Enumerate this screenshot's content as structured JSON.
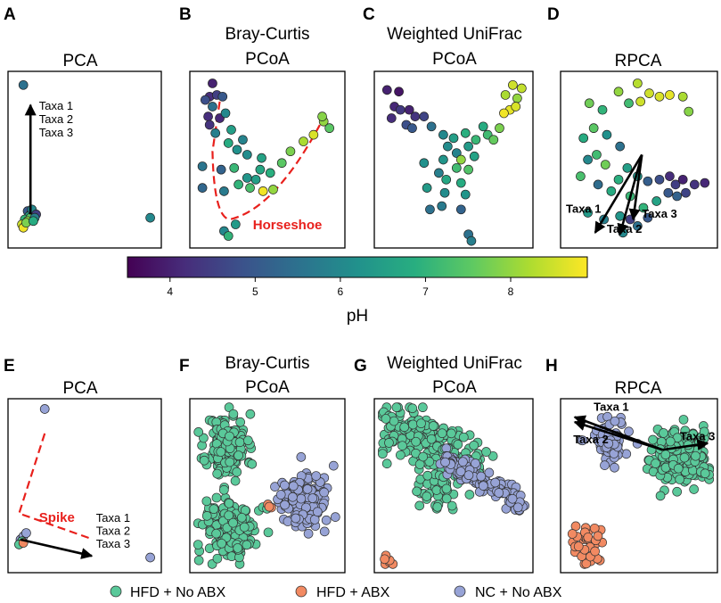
{
  "chart_data": [
    {
      "panel": "A",
      "type": "scatter",
      "title": "PCA",
      "color_by": "pH",
      "points": [
        [
          0.07,
          0.95,
          5.5
        ],
        [
          0.1,
          0.19,
          5.0
        ],
        [
          0.12,
          0.17,
          4.8
        ],
        [
          0.14,
          0.18,
          5.2
        ],
        [
          0.11,
          0.16,
          6.5
        ],
        [
          0.08,
          0.14,
          7.0
        ],
        [
          0.06,
          0.11,
          8.5
        ],
        [
          0.07,
          0.09,
          8.8
        ],
        [
          0.12,
          0.15,
          7.5
        ],
        [
          0.13,
          0.2,
          6.0
        ],
        [
          0.16,
          0.17,
          4.5
        ],
        [
          0.15,
          0.15,
          5.8
        ],
        [
          0.1,
          0.13,
          8.0
        ],
        [
          0.09,
          0.12,
          7.8
        ],
        [
          0.14,
          0.13,
          6.8
        ],
        [
          0.96,
          0.15,
          6.0
        ]
      ],
      "arrows": [
        {
          "from": [
            0.12,
            0.17
          ],
          "to": [
            0.12,
            0.83
          ]
        }
      ],
      "labels": [
        "Taxa 1",
        "Taxa 2",
        "Taxa 3"
      ]
    },
    {
      "panel": "B",
      "type": "scatter",
      "title_line1": "Bray-Curtis",
      "title_line2": "PCoA",
      "color_by": "pH",
      "points": [
        [
          0.12,
          0.96,
          4.0
        ],
        [
          0.1,
          0.88,
          4.2
        ],
        [
          0.15,
          0.89,
          4.5
        ],
        [
          0.19,
          0.88,
          5.0
        ],
        [
          0.07,
          0.86,
          4.8
        ],
        [
          0.12,
          0.82,
          5.5
        ],
        [
          0.09,
          0.76,
          4.2
        ],
        [
          0.1,
          0.71,
          4.3
        ],
        [
          0.17,
          0.75,
          4.1
        ],
        [
          0.21,
          0.78,
          6.0
        ],
        [
          0.25,
          0.68,
          6.5
        ],
        [
          0.14,
          0.66,
          5.8
        ],
        [
          0.23,
          0.6,
          6.8
        ],
        [
          0.29,
          0.56,
          6.2
        ],
        [
          0.33,
          0.62,
          5.9
        ],
        [
          0.36,
          0.53,
          6.1
        ],
        [
          0.46,
          0.51,
          6.6
        ],
        [
          0.05,
          0.46,
          5.6
        ],
        [
          0.18,
          0.44,
          5.2
        ],
        [
          0.27,
          0.45,
          7.1
        ],
        [
          0.36,
          0.39,
          6.3
        ],
        [
          0.45,
          0.44,
          6.7
        ],
        [
          0.52,
          0.42,
          6.9
        ],
        [
          0.6,
          0.48,
          7.5
        ],
        [
          0.66,
          0.55,
          7.8
        ],
        [
          0.75,
          0.61,
          8.2
        ],
        [
          0.82,
          0.65,
          8.6
        ],
        [
          0.89,
          0.73,
          8.0
        ],
        [
          0.93,
          0.69,
          7.5
        ],
        [
          0.88,
          0.76,
          7.9
        ],
        [
          0.05,
          0.33,
          5.3
        ],
        [
          0.2,
          0.31,
          5.7
        ],
        [
          0.3,
          0.35,
          7.0
        ],
        [
          0.38,
          0.33,
          7.3
        ],
        [
          0.2,
          0.07,
          6.0
        ],
        [
          0.23,
          0.04,
          7.0
        ],
        [
          0.28,
          0.11,
          6.4
        ],
        [
          0.54,
          0.32,
          8.0
        ],
        [
          0.42,
          0.38,
          6.5
        ],
        [
          0.47,
          0.31,
          8.8
        ]
      ],
      "annotation": "Horseshoe"
    },
    {
      "panel": "C",
      "type": "scatter",
      "title_line1": "Weighted UniFrac",
      "title_line2": "PCoA",
      "color_by": "pH",
      "points": [
        [
          0.05,
          0.92,
          4.0
        ],
        [
          0.13,
          0.91,
          3.8
        ],
        [
          0.1,
          0.82,
          4.1
        ],
        [
          0.14,
          0.8,
          4.4
        ],
        [
          0.2,
          0.8,
          4.0
        ],
        [
          0.24,
          0.76,
          4.3
        ],
        [
          0.3,
          0.76,
          4.6
        ],
        [
          0.08,
          0.75,
          4.2
        ],
        [
          0.18,
          0.71,
          4.8
        ],
        [
          0.22,
          0.69,
          5.0
        ],
        [
          0.35,
          0.7,
          5.5
        ],
        [
          0.43,
          0.65,
          6.0
        ],
        [
          0.5,
          0.63,
          6.5
        ],
        [
          0.58,
          0.66,
          6.9
        ],
        [
          0.65,
          0.62,
          7.1
        ],
        [
          0.7,
          0.7,
          6.8
        ],
        [
          0.73,
          0.65,
          7.2
        ],
        [
          0.77,
          0.62,
          7.6
        ],
        [
          0.81,
          0.69,
          7.8
        ],
        [
          0.85,
          0.89,
          8.2
        ],
        [
          0.9,
          0.95,
          8.5
        ],
        [
          0.93,
          0.87,
          8.0
        ],
        [
          0.96,
          0.93,
          8.4
        ],
        [
          0.88,
          0.8,
          8.7
        ],
        [
          0.84,
          0.78,
          8.8
        ],
        [
          0.92,
          0.82,
          8.6
        ],
        [
          0.6,
          0.58,
          6.4
        ],
        [
          0.52,
          0.54,
          5.9
        ],
        [
          0.46,
          0.58,
          6.1
        ],
        [
          0.43,
          0.5,
          6.3
        ],
        [
          0.55,
          0.5,
          8.0
        ],
        [
          0.6,
          0.44,
          7.4
        ],
        [
          0.64,
          0.52,
          6.6
        ],
        [
          0.52,
          0.45,
          7.2
        ],
        [
          0.3,
          0.48,
          6.2
        ],
        [
          0.4,
          0.42,
          5.8
        ],
        [
          0.45,
          0.38,
          6.7
        ],
        [
          0.55,
          0.36,
          6.8
        ],
        [
          0.32,
          0.33,
          6.4
        ],
        [
          0.44,
          0.3,
          6.1
        ],
        [
          0.58,
          0.29,
          6.3
        ],
        [
          0.42,
          0.22,
          5.7
        ],
        [
          0.55,
          0.2,
          5.2
        ],
        [
          0.34,
          0.2,
          5.5
        ],
        [
          0.6,
          0.05,
          5.5
        ],
        [
          0.62,
          0.01,
          5.8
        ]
      ]
    },
    {
      "panel": "D",
      "type": "scatter",
      "title": "RPCA",
      "color_by": "pH",
      "points": [
        [
          0.49,
          0.96,
          8.3
        ],
        [
          0.57,
          0.9,
          8.5
        ],
        [
          0.71,
          0.89,
          8.7
        ],
        [
          0.8,
          0.88,
          8.2
        ],
        [
          0.51,
          0.85,
          8.5
        ],
        [
          0.64,
          0.88,
          8.6
        ],
        [
          0.84,
          0.79,
          7.9
        ],
        [
          0.36,
          0.91,
          8.0
        ],
        [
          0.43,
          0.84,
          7.2
        ],
        [
          0.16,
          0.84,
          7.7
        ],
        [
          0.25,
          0.8,
          7.0
        ],
        [
          0.19,
          0.69,
          7.5
        ],
        [
          0.12,
          0.63,
          6.8
        ],
        [
          0.28,
          0.65,
          6.2
        ],
        [
          0.37,
          0.58,
          5.5
        ],
        [
          0.21,
          0.53,
          7.2
        ],
        [
          0.42,
          0.45,
          6.5
        ],
        [
          0.15,
          0.5,
          6.0
        ],
        [
          0.27,
          0.47,
          7.7
        ],
        [
          0.1,
          0.4,
          7.3
        ],
        [
          0.36,
          0.38,
          6.9
        ],
        [
          0.49,
          0.4,
          6.3
        ],
        [
          0.56,
          0.37,
          5.1
        ],
        [
          0.22,
          0.35,
          5.4
        ],
        [
          0.31,
          0.31,
          6.8
        ],
        [
          0.44,
          0.28,
          7.1
        ],
        [
          0.64,
          0.38,
          4.8
        ],
        [
          0.71,
          0.4,
          4.2
        ],
        [
          0.75,
          0.35,
          4.5
        ],
        [
          0.8,
          0.38,
          4.0
        ],
        [
          0.82,
          0.3,
          4.6
        ],
        [
          0.88,
          0.35,
          4.3
        ],
        [
          0.95,
          0.36,
          4.1
        ],
        [
          0.76,
          0.28,
          5.2
        ],
        [
          0.7,
          0.3,
          5.0
        ],
        [
          0.62,
          0.25,
          6.6
        ],
        [
          0.53,
          0.21,
          7.0
        ],
        [
          0.37,
          0.16,
          6.3
        ],
        [
          0.44,
          0.14,
          4.5
        ],
        [
          0.56,
          0.15,
          5.0
        ],
        [
          0.26,
          0.14,
          5.8
        ],
        [
          0.15,
          0.18,
          6.4
        ],
        [
          0.49,
          0.1,
          5.5
        ],
        [
          0.39,
          0.06,
          6.0
        ]
      ],
      "arrows": [
        {
          "from": [
            0.52,
            0.53
          ],
          "to": [
            0.2,
            0.06
          ]
        },
        {
          "from": [
            0.52,
            0.53
          ],
          "to": [
            0.37,
            0.05
          ]
        },
        {
          "from": [
            0.52,
            0.53
          ],
          "to": [
            0.46,
            0.14
          ]
        }
      ],
      "labels": [
        "Taxa 1",
        "Taxa 2",
        "Taxa 3"
      ]
    },
    {
      "panel": "E",
      "type": "scatter",
      "title": "PCA",
      "color_by": "group",
      "points": [
        [
          0.22,
          0.97,
          "NC + No ABX"
        ],
        [
          0.05,
          0.17,
          "NC + No ABX"
        ],
        [
          0.07,
          0.19,
          "NC + No ABX"
        ],
        [
          0.09,
          0.21,
          "NC + No ABX"
        ],
        [
          0.06,
          0.16,
          "HFD + No ABX"
        ],
        [
          0.04,
          0.14,
          "HFD + No ABX"
        ],
        [
          0.07,
          0.15,
          "HFD + ABX"
        ],
        [
          0.96,
          0.06,
          "NC + No ABX"
        ]
      ],
      "arrows": [
        {
          "from": [
            0.05,
            0.17
          ],
          "to": [
            0.55,
            0.07
          ]
        }
      ],
      "labels": [
        "Taxa 1",
        "Taxa 2",
        "Taxa 3"
      ],
      "annotation": "Spike"
    },
    {
      "panel": "F",
      "type": "scatter",
      "title_line1": "Bray-Curtis",
      "title_line2": "PCoA",
      "color_by": "group",
      "clusters": [
        {
          "group": "HFD + No ABX",
          "n": 150,
          "cx": 0.22,
          "cy": 0.74,
          "sx": 0.07,
          "sy": 0.1,
          "seed": 11
        },
        {
          "group": "HFD + No ABX",
          "n": 170,
          "cx": 0.25,
          "cy": 0.23,
          "sx": 0.09,
          "sy": 0.1,
          "seed": 12
        },
        {
          "group": "NC + No ABX",
          "n": 150,
          "cx": 0.76,
          "cy": 0.41,
          "sx": 0.09,
          "sy": 0.08,
          "seed": 13
        },
        {
          "group": "HFD + ABX",
          "n": 3,
          "cx": 0.52,
          "cy": 0.38,
          "sx": 0.01,
          "sy": 0.01,
          "seed": 14
        }
      ]
    },
    {
      "panel": "G",
      "type": "scatter",
      "title_line1": "Weighted UniFrac",
      "title_line2": "PCoA",
      "color_by": "group",
      "clusters": [
        {
          "group": "HFD + No ABX",
          "n": 260,
          "cx": 0.35,
          "cy": 0.74,
          "sx": 0.14,
          "sy": 0.1,
          "seed": 21
        },
        {
          "group": "NC + No ABX",
          "n": 130,
          "cx": 0.72,
          "cy": 0.55,
          "sx": 0.11,
          "sy": 0.06,
          "seed": 22
        },
        {
          "group": "HFD + ABX",
          "n": 6,
          "cx": 0.06,
          "cy": 0.04,
          "sx": 0.02,
          "sy": 0.02,
          "seed": 23
        }
      ]
    },
    {
      "panel": "H",
      "type": "scatter",
      "title": "RPCA",
      "color_by": "group",
      "clusters": [
        {
          "group": "HFD + No ABX",
          "n": 260,
          "cx": 0.78,
          "cy": 0.67,
          "sx": 0.1,
          "sy": 0.08,
          "seed": 31
        },
        {
          "group": "NC + No ABX",
          "n": 70,
          "cx": 0.3,
          "cy": 0.78,
          "sx": 0.07,
          "sy": 0.07,
          "seed": 32
        },
        {
          "group": "HFD + ABX",
          "n": 35,
          "cx": 0.14,
          "cy": 0.12,
          "sx": 0.05,
          "sy": 0.07,
          "seed": 33
        }
      ],
      "arrows": [
        {
          "from": [
            0.66,
            0.72
          ],
          "to": [
            0.06,
            0.92
          ]
        },
        {
          "from": [
            0.66,
            0.72
          ],
          "to": [
            0.06,
            0.89
          ]
        },
        {
          "from": [
            0.66,
            0.72
          ],
          "to": [
            0.97,
            0.76
          ]
        }
      ],
      "labels": [
        "Taxa 1",
        "Taxa 2",
        "Taxa 3"
      ]
    }
  ],
  "colorbar": {
    "label": "pH",
    "ticks": [
      4,
      5,
      6,
      7,
      8
    ],
    "range": [
      3.5,
      8.9
    ],
    "colormap": "viridis"
  },
  "legend": {
    "entries": [
      "HFD + No ABX",
      "HFD + ABX",
      "NC + No ABX"
    ]
  },
  "colors": {
    "HFD + No ABX": "#5ac99a",
    "HFD + ABX": "#f28a62",
    "NC + No ABX": "#97a3d6",
    "annotation": "#e8201c"
  }
}
